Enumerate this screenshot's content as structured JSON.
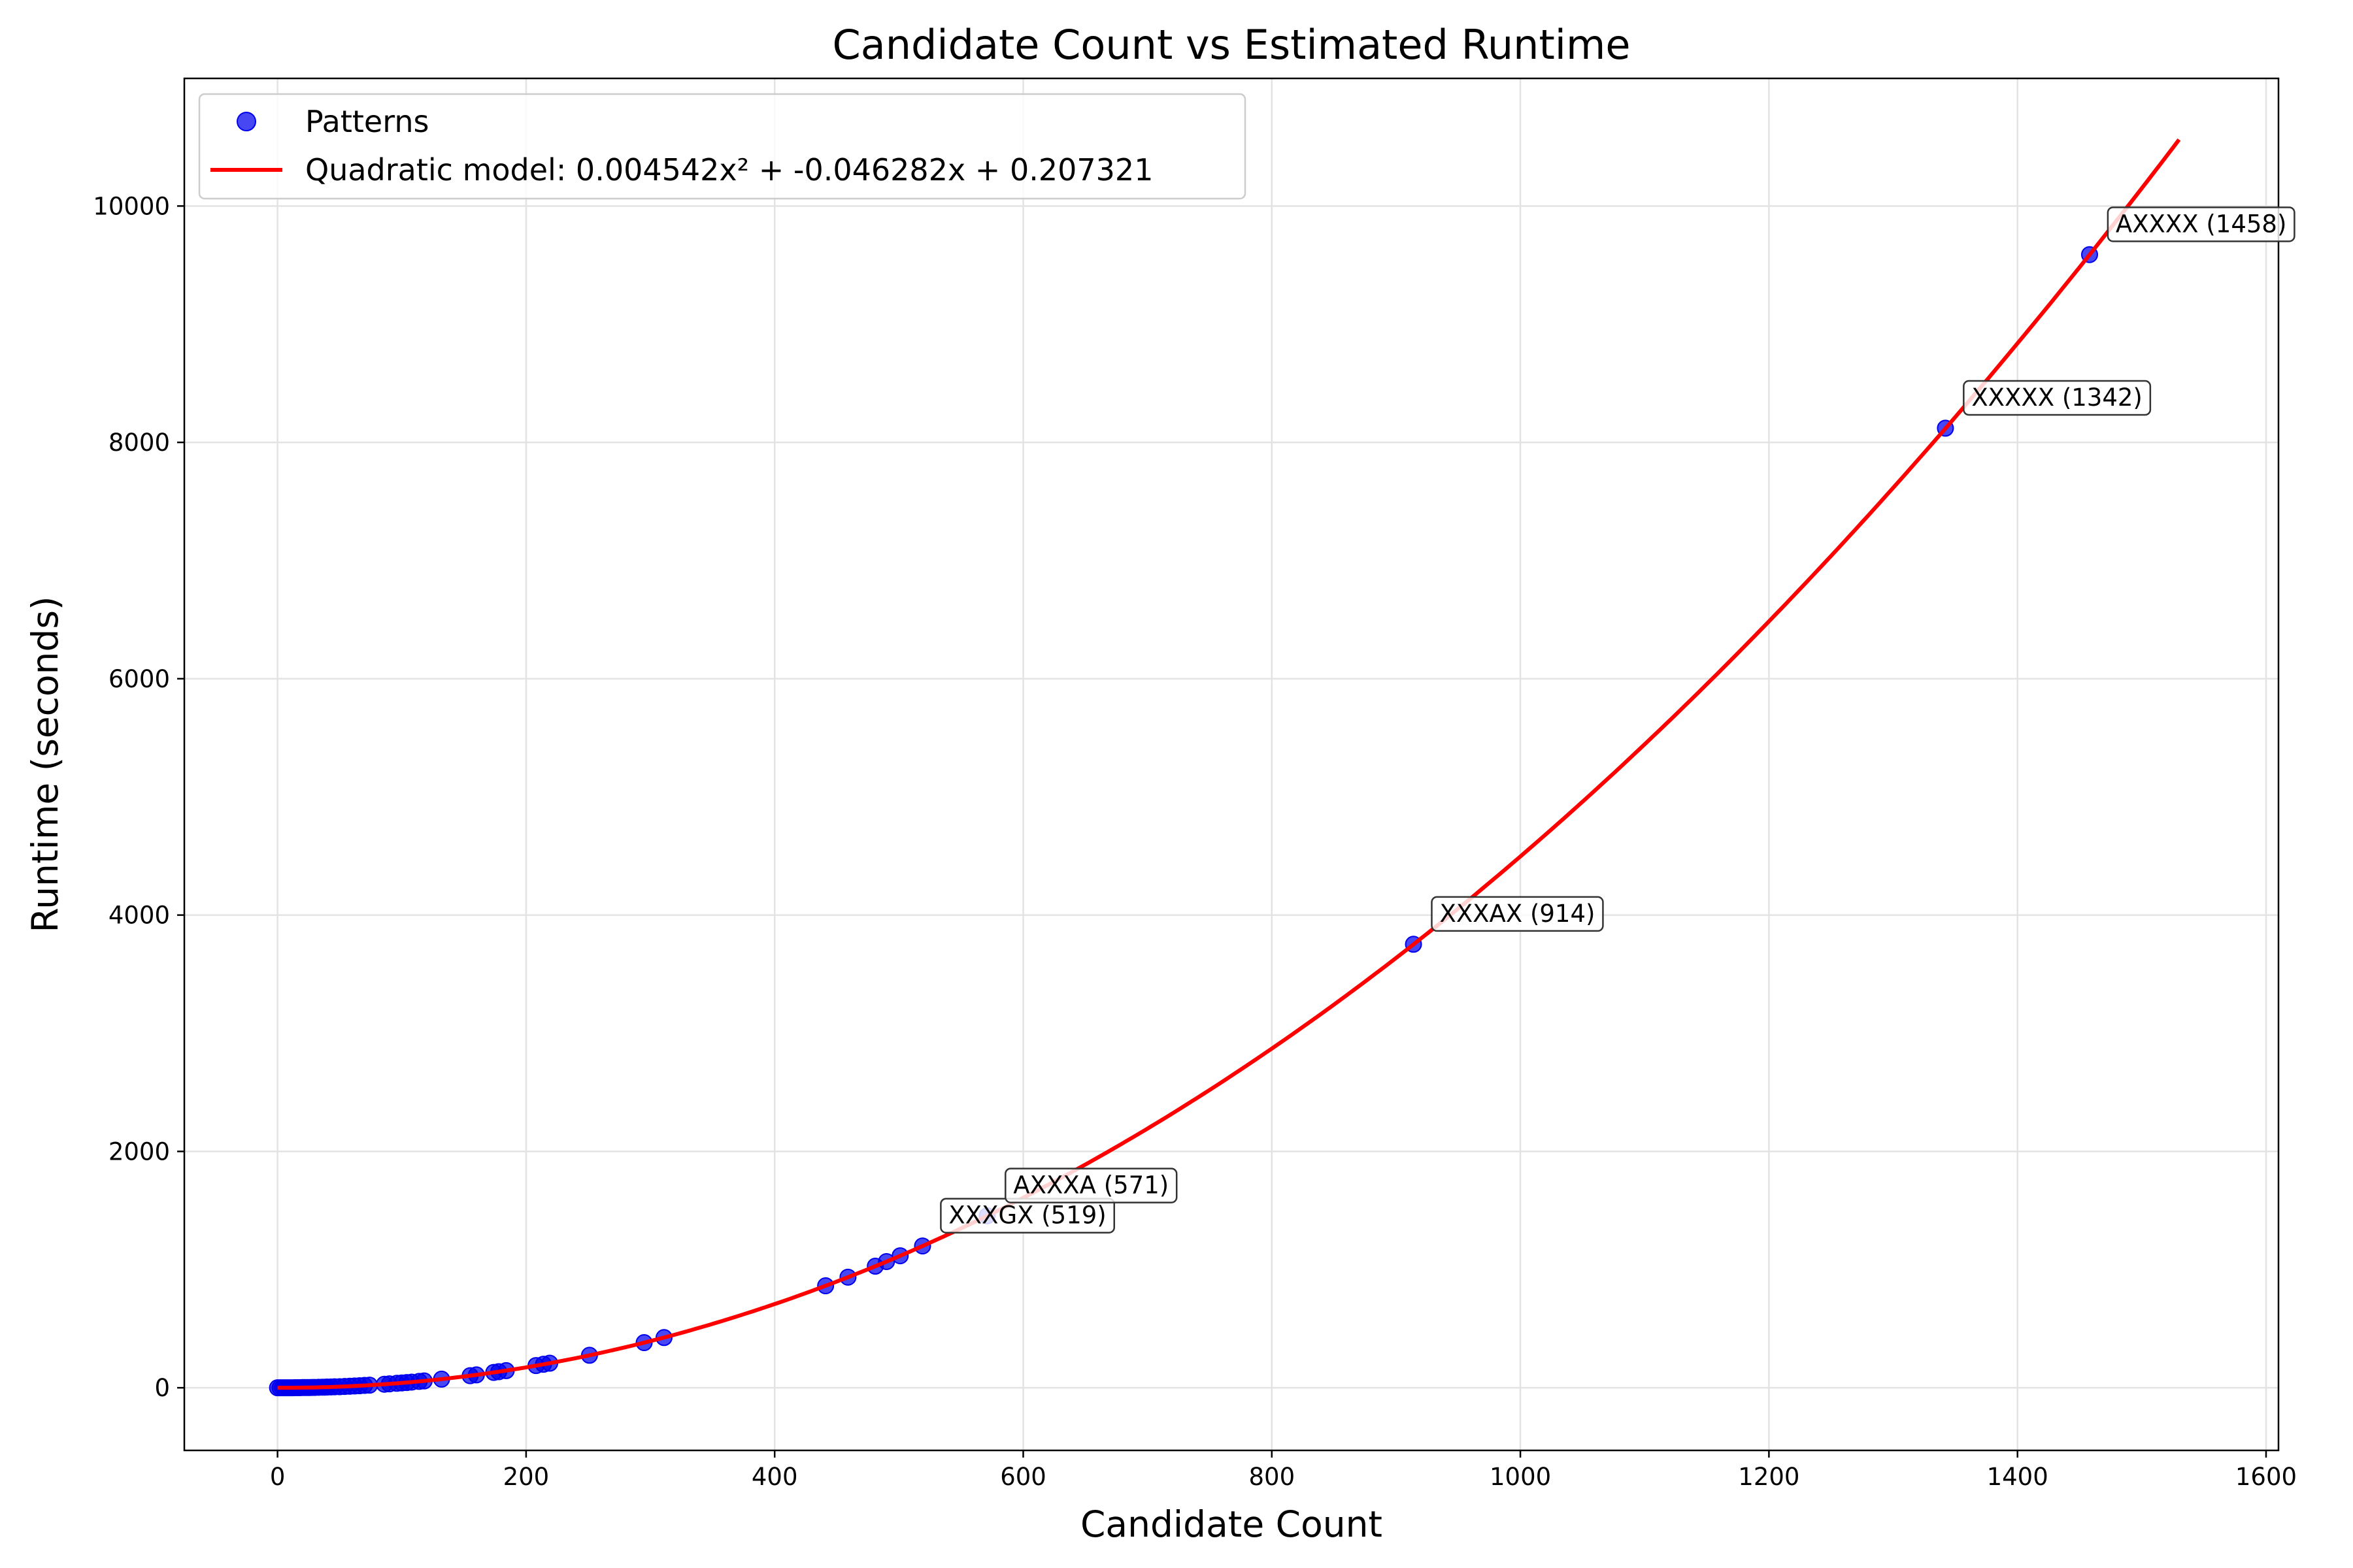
{
  "chart_data": {
    "type": "scatter",
    "title": "Candidate Count vs Estimated Runtime",
    "xlabel": "Candidate Count",
    "ylabel": "Runtime (seconds)",
    "xlim": [
      -75,
      1610
    ],
    "ylim": [
      -530,
      11080
    ],
    "xticks": [
      0,
      200,
      400,
      600,
      800,
      1000,
      1200,
      1400,
      1600
    ],
    "yticks": [
      0,
      2000,
      4000,
      6000,
      8000,
      10000
    ],
    "grid": true,
    "legend_position": "top-left",
    "colors": {
      "points": "#0000ee",
      "model": "#ff0000",
      "grid": "#e3e3e3",
      "annotation_box": "#333333"
    },
    "series": [
      {
        "name": "Patterns",
        "kind": "scatter",
        "points": [
          [
            0,
            0
          ],
          [
            2,
            0
          ],
          [
            4,
            0
          ],
          [
            6,
            0
          ],
          [
            8,
            0
          ],
          [
            10,
            0
          ],
          [
            12,
            0
          ],
          [
            14,
            1
          ],
          [
            16,
            1
          ],
          [
            18,
            1
          ],
          [
            20,
            2
          ],
          [
            22,
            2
          ],
          [
            24,
            2
          ],
          [
            26,
            2
          ],
          [
            28,
            3
          ],
          [
            30,
            3
          ],
          [
            33,
            4
          ],
          [
            36,
            5
          ],
          [
            38,
            5
          ],
          [
            40,
            6
          ],
          [
            43,
            7
          ],
          [
            46,
            8
          ],
          [
            50,
            9
          ],
          [
            54,
            11
          ],
          [
            58,
            13
          ],
          [
            62,
            15
          ],
          [
            66,
            17
          ],
          [
            70,
            20
          ],
          [
            74,
            22
          ],
          [
            86,
            30
          ],
          [
            90,
            33
          ],
          [
            96,
            38
          ],
          [
            100,
            41
          ],
          [
            104,
            44
          ],
          [
            108,
            48
          ],
          [
            114,
            54
          ],
          [
            118,
            58
          ],
          [
            132,
            73
          ],
          [
            155,
            102
          ],
          [
            160,
            109
          ],
          [
            174,
            130
          ],
          [
            178,
            136
          ],
          [
            184,
            145
          ],
          [
            208,
            188
          ],
          [
            214,
            199
          ],
          [
            219,
            208
          ],
          [
            251,
            275
          ],
          [
            295,
            382
          ],
          [
            311,
            425
          ],
          [
            441,
            863
          ],
          [
            459,
            936
          ],
          [
            481,
            1029
          ],
          [
            490,
            1068
          ],
          [
            501,
            1117
          ],
          [
            519,
            1200
          ],
          [
            571,
            1455
          ],
          [
            914,
            3753
          ],
          [
            1342,
            8120
          ],
          [
            1458,
            9589
          ]
        ]
      },
      {
        "name": "Quadratic model: 0.004542x² + -0.046282x + 0.207321",
        "kind": "line",
        "coefficients": [
          0.004542,
          -0.046282,
          0.207321
        ],
        "x_range": [
          0,
          1530
        ]
      }
    ],
    "annotations": [
      {
        "text": "XXXGX (519)",
        "x": 519,
        "y": 1200,
        "label_x": 540,
        "label_y": 1390
      },
      {
        "text": "AXXXA (571)",
        "x": 571,
        "y": 1455,
        "label_x": 592,
        "label_y": 1645
      },
      {
        "text": "XXXAX (914)",
        "x": 914,
        "y": 3753,
        "label_x": 935,
        "label_y": 3943
      },
      {
        "text": "XXXXX (1342)",
        "x": 1342,
        "y": 8120,
        "label_x": 1363,
        "label_y": 8310
      },
      {
        "text": "AXXXX (1458)",
        "x": 1458,
        "y": 9589,
        "label_x": 1479,
        "label_y": 9779
      }
    ]
  }
}
